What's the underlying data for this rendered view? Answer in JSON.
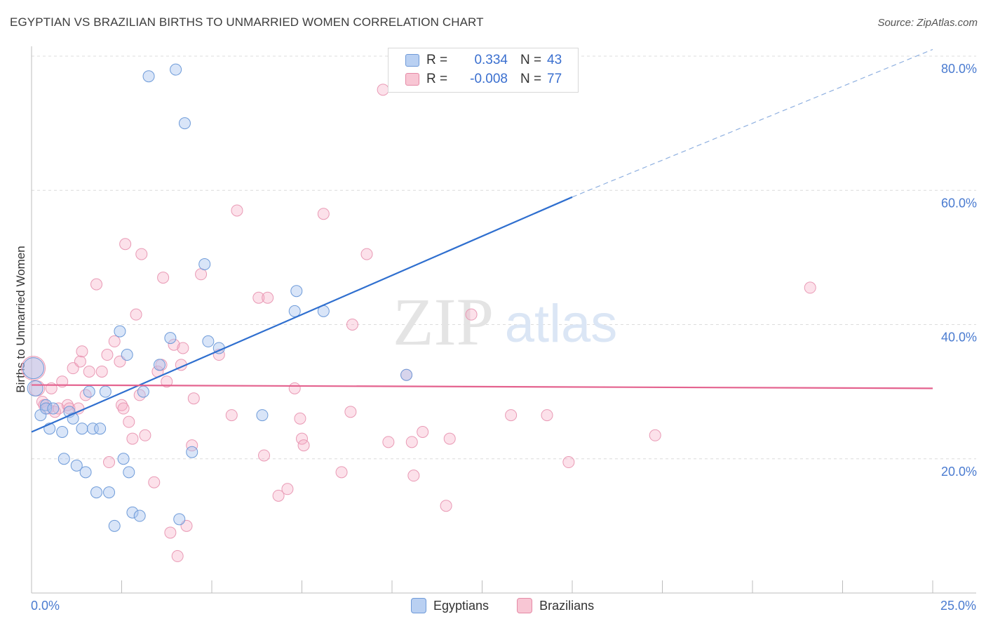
{
  "title": "EGYPTIAN VS BRAZILIAN BIRTHS TO UNMARRIED WOMEN CORRELATION CHART",
  "source": "Source: ZipAtlas.com",
  "watermark": {
    "zip": "ZIP",
    "atlas": "atlas"
  },
  "legend": {
    "egyptians": {
      "r_label": "R =",
      "r_value": "0.334",
      "n_label": "N =",
      "n_value": "43"
    },
    "brazilians": {
      "r_label": "R =",
      "r_value": "-0.008",
      "n_label": "N =",
      "n_value": "77"
    }
  },
  "bottom_legend": {
    "egyptians": "Egyptians",
    "brazilians": "Brazilians"
  },
  "chart_data": {
    "type": "scatter",
    "title": "EGYPTIAN VS BRAZILIAN BIRTHS TO UNMARRIED WOMEN CORRELATION CHART",
    "xlabel": "",
    "ylabel": "Births to Unmarried Women",
    "xlim": [
      0,
      25
    ],
    "ylim": [
      0,
      80
    ],
    "x_tick_labels": [
      "0.0%",
      "25.0%"
    ],
    "y_ticks": [
      20,
      40,
      60,
      80
    ],
    "y_tick_labels": [
      "20.0%",
      "40.0%",
      "60.0%",
      "80.0%"
    ],
    "grid": true,
    "legend_position": "top-center",
    "colors": {
      "egyptians": "#3a74d0",
      "brazilians": "#e56a94"
    },
    "series": [
      {
        "name": "Egyptians",
        "color": "#3a74d0",
        "trend": {
          "x": [
            0,
            15
          ],
          "y": [
            24,
            59
          ],
          "dashed_to": [
            25,
            81
          ]
        },
        "points": [
          [
            0.05,
            33.5
          ],
          [
            0.1,
            30.5
          ],
          [
            0.25,
            26.5
          ],
          [
            0.4,
            28
          ],
          [
            0.4,
            27.5
          ],
          [
            0.5,
            24.5
          ],
          [
            0.6,
            27.5
          ],
          [
            0.85,
            24
          ],
          [
            0.9,
            20
          ],
          [
            1.05,
            27
          ],
          [
            1.15,
            26
          ],
          [
            1.25,
            19
          ],
          [
            1.5,
            18
          ],
          [
            1.4,
            24.5
          ],
          [
            1.7,
            24.5
          ],
          [
            1.9,
            24.5
          ],
          [
            1.6,
            30
          ],
          [
            2.05,
            30
          ],
          [
            1.8,
            15
          ],
          [
            2.15,
            15
          ],
          [
            2.3,
            10
          ],
          [
            2.45,
            39
          ],
          [
            2.55,
            20
          ],
          [
            2.65,
            35.5
          ],
          [
            2.7,
            18
          ],
          [
            2.8,
            12
          ],
          [
            3.0,
            11.5
          ],
          [
            3.1,
            30
          ],
          [
            3.25,
            77
          ],
          [
            3.55,
            34
          ],
          [
            3.85,
            38
          ],
          [
            4.0,
            78
          ],
          [
            4.1,
            11
          ],
          [
            4.25,
            70
          ],
          [
            4.45,
            21
          ],
          [
            4.8,
            49
          ],
          [
            4.9,
            37.5
          ],
          [
            5.2,
            36.5
          ],
          [
            6.4,
            26.5
          ],
          [
            7.3,
            42
          ],
          [
            7.35,
            45
          ],
          [
            8.1,
            42
          ],
          [
            10.4,
            32.5
          ]
        ]
      },
      {
        "name": "Brazilians",
        "color": "#e56a94",
        "trend": {
          "x": [
            0,
            25
          ],
          "y": [
            31,
            30.5
          ]
        },
        "points": [
          [
            0.05,
            33.5
          ],
          [
            0.15,
            30.5
          ],
          [
            0.3,
            28.5
          ],
          [
            0.35,
            28
          ],
          [
            0.45,
            27.5
          ],
          [
            0.55,
            30.5
          ],
          [
            0.65,
            27
          ],
          [
            0.75,
            27.5
          ],
          [
            0.85,
            31.5
          ],
          [
            1.0,
            28
          ],
          [
            1.05,
            27.5
          ],
          [
            1.15,
            33.5
          ],
          [
            1.3,
            27.5
          ],
          [
            1.35,
            34.5
          ],
          [
            1.4,
            36
          ],
          [
            1.5,
            29.5
          ],
          [
            1.6,
            33
          ],
          [
            1.8,
            46
          ],
          [
            1.95,
            33
          ],
          [
            2.1,
            35.5
          ],
          [
            2.15,
            19.5
          ],
          [
            2.3,
            37.5
          ],
          [
            2.45,
            34.5
          ],
          [
            2.5,
            28
          ],
          [
            2.55,
            27.5
          ],
          [
            2.6,
            52
          ],
          [
            2.7,
            25.5
          ],
          [
            2.8,
            23
          ],
          [
            2.9,
            41.5
          ],
          [
            3.0,
            29.5
          ],
          [
            3.05,
            50.5
          ],
          [
            3.15,
            23.5
          ],
          [
            3.4,
            16.5
          ],
          [
            3.5,
            33
          ],
          [
            3.6,
            34
          ],
          [
            3.65,
            47
          ],
          [
            3.75,
            31.5
          ],
          [
            3.85,
            9
          ],
          [
            3.95,
            37
          ],
          [
            4.05,
            5.5
          ],
          [
            4.15,
            34
          ],
          [
            4.2,
            36.5
          ],
          [
            4.3,
            10
          ],
          [
            4.45,
            22
          ],
          [
            4.5,
            29
          ],
          [
            4.7,
            47.5
          ],
          [
            5.2,
            35.5
          ],
          [
            5.55,
            26.5
          ],
          [
            5.7,
            57
          ],
          [
            6.3,
            44
          ],
          [
            6.45,
            20.5
          ],
          [
            6.55,
            44
          ],
          [
            6.85,
            14.5
          ],
          [
            7.1,
            15.5
          ],
          [
            7.3,
            30.5
          ],
          [
            7.5,
            23
          ],
          [
            7.55,
            22
          ],
          [
            7.45,
            26
          ],
          [
            8.1,
            56.5
          ],
          [
            8.6,
            18
          ],
          [
            8.9,
            40
          ],
          [
            8.85,
            27
          ],
          [
            9.3,
            50.5
          ],
          [
            9.75,
            75
          ],
          [
            9.9,
            22.5
          ],
          [
            10.4,
            32.5
          ],
          [
            10.55,
            22.5
          ],
          [
            10.6,
            17.5
          ],
          [
            10.85,
            24
          ],
          [
            11.5,
            13
          ],
          [
            11.6,
            23
          ],
          [
            12.2,
            41.5
          ],
          [
            13.3,
            26.5
          ],
          [
            14.3,
            26.5
          ],
          [
            14.9,
            19.5
          ],
          [
            17.3,
            23.5
          ],
          [
            21.6,
            45.5
          ]
        ]
      }
    ]
  }
}
